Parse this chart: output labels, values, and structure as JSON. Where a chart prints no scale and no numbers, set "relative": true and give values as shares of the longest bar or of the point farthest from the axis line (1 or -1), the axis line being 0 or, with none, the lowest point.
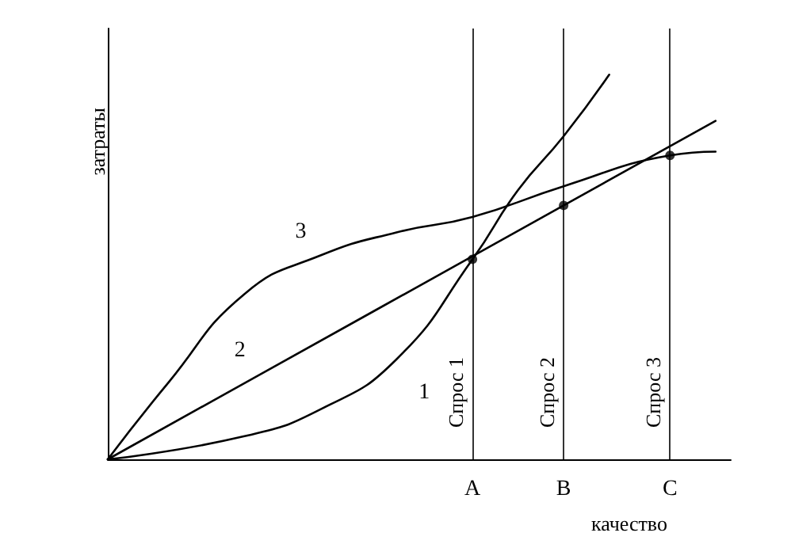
{
  "chart_data": {
    "type": "line",
    "relative": true,
    "xlabel": "качество",
    "ylabel": "затраты",
    "categories": [
      null,
      null,
      null,
      null,
      null,
      null,
      null,
      null,
      null,
      null,
      null,
      null,
      null,
      null,
      null,
      null,
      null,
      null,
      null,
      null,
      null,
      null,
      null,
      null,
      "A",
      null,
      null,
      null,
      null,
      null,
      "B",
      null,
      null,
      null,
      null,
      null,
      null,
      "C",
      null,
      null,
      null,
      null
    ],
    "series": [
      {
        "name": "1",
        "color": "#000000",
        "values": [
          0,
          null,
          null,
          null,
          null,
          null,
          null,
          null,
          null,
          0.06,
          null,
          null,
          null,
          null,
          0.13,
          null,
          null,
          null,
          null,
          0.26,
          null,
          null,
          null,
          null,
          0.52,
          null,
          null,
          0.7,
          null,
          null,
          0.84,
          null,
          null,
          1,
          null,
          null,
          null,
          null,
          null,
          null,
          null,
          null
        ]
      },
      {
        "name": "2",
        "color": "#000000",
        "values": [
          0,
          null,
          null,
          null,
          null,
          null,
          null,
          null,
          null,
          null,
          0.22,
          null,
          null,
          null,
          null,
          null,
          null,
          null,
          null,
          null,
          null,
          null,
          null,
          null,
          null,
          0.55,
          null,
          null,
          null,
          null,
          null,
          null,
          null,
          null,
          null,
          null,
          null,
          null,
          null,
          null,
          0.88,
          null
        ]
      },
      {
        "name": "3",
        "color": "#000000",
        "values": [
          0,
          null,
          null,
          null,
          0.2,
          null,
          null,
          null,
          null,
          0.43,
          null,
          null,
          null,
          null,
          0.53,
          null,
          null,
          null,
          null,
          0.59,
          null,
          null,
          null,
          null,
          0.63,
          null,
          null,
          null,
          null,
          null,
          0.71,
          null,
          null,
          null,
          null,
          null,
          null,
          0.79,
          null,
          null,
          0.8,
          null
        ]
      },
      {
        "type": "scatter",
        "marker": "circle",
        "color": "#000000",
        "values": [
          null,
          null,
          null,
          null,
          null,
          null,
          null,
          null,
          null,
          null,
          null,
          null,
          null,
          null,
          null,
          null,
          null,
          null,
          null,
          null,
          null,
          null,
          null,
          null,
          0.52,
          null,
          null,
          null,
          null,
          null,
          0.66,
          null,
          null,
          null,
          null,
          null,
          null,
          0.79,
          null,
          null,
          null,
          null
        ]
      }
    ],
    "ref_lines": [
      {
        "axis": "x",
        "value": "A",
        "label": "Спрос 1",
        "color": "#000000"
      },
      {
        "axis": "x",
        "value": "B",
        "label": "Спрос 2",
        "color": "#000000"
      },
      {
        "axis": "x",
        "value": "C",
        "label": "Спрос 3",
        "color": "#000000"
      }
    ],
    "marker": "none",
    "line_style": "solid",
    "grid": false,
    "legend": false
  }
}
